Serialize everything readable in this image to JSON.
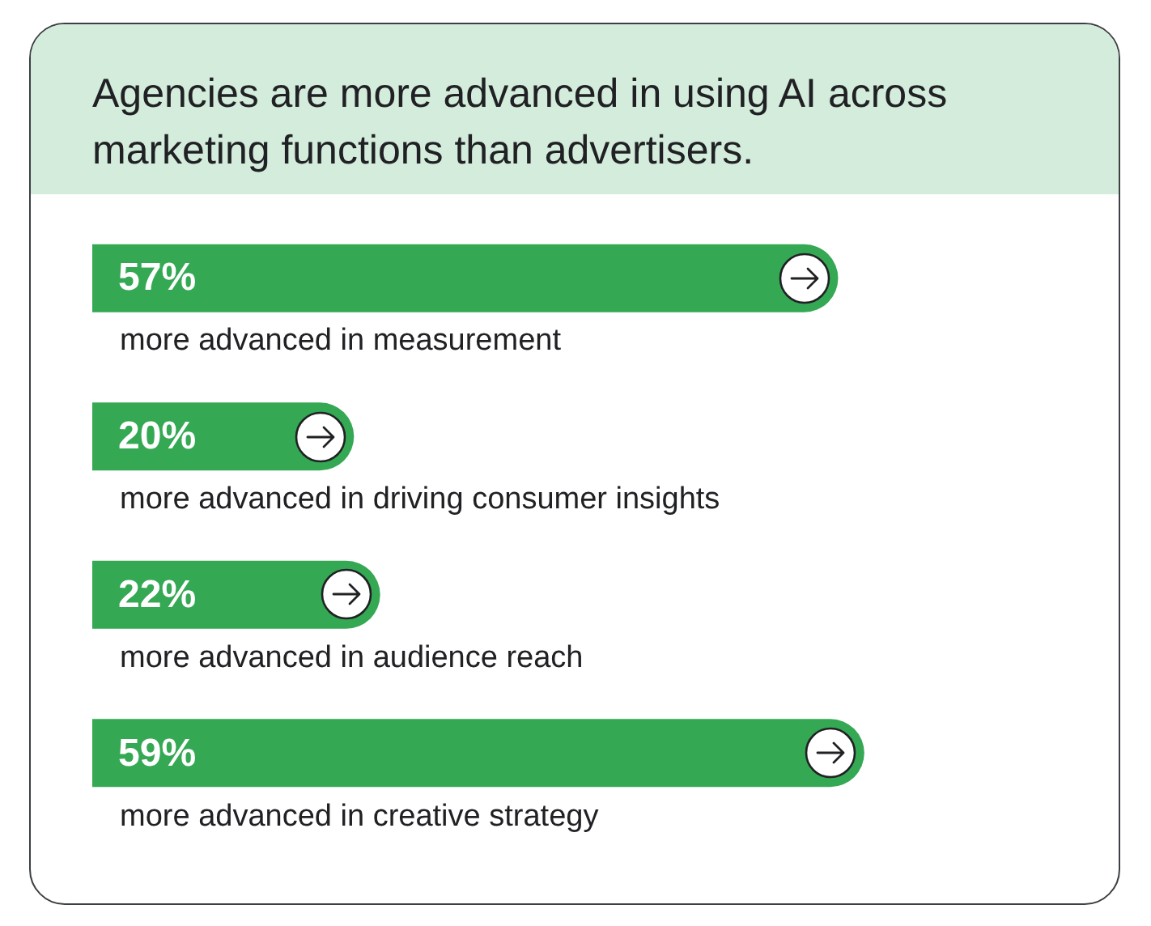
{
  "chart_data": {
    "type": "bar",
    "orientation": "horizontal",
    "title": "Agencies are more advanced in using AI across marketing functions than advertisers.",
    "categories": [
      "more advanced in measurement",
      "more advanced in driving consumer insights",
      "more advanced in audience reach",
      "more advanced in creative strategy"
    ],
    "values": [
      57,
      20,
      22,
      59
    ],
    "value_labels": [
      "57%",
      "20%",
      "22%",
      "59%"
    ],
    "color": "#34a853",
    "tick_labels": "y"
  }
}
